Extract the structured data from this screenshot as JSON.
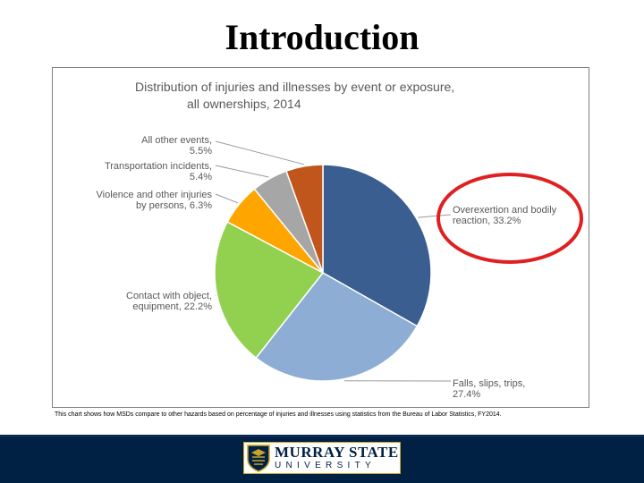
{
  "slide": {
    "title": "Introduction",
    "caption": "This chart shows how MSDs compare to other hazards based on percentage of injuries and illnesses using statistics from the Bureau of Labor Statistics, FY2014."
  },
  "chart_data": {
    "type": "pie",
    "title_lines": [
      "Distribution of injuries and illnesses by event or exposure,",
      "all ownerships, 2014"
    ],
    "slices": [
      {
        "label_lines": [
          "Overexertion and bodily",
          "reaction, 33.2%"
        ],
        "value": 33.2,
        "color": "#3a5e8f"
      },
      {
        "label_lines": [
          "Falls, slips, trips,",
          "27.4%"
        ],
        "value": 27.4,
        "color": "#8eadd4"
      },
      {
        "label_lines": [
          "Contact with object,",
          "equipment, 22.2%"
        ],
        "value": 22.2,
        "color": "#92d050"
      },
      {
        "label_lines": [
          "Violence and other injuries",
          "by persons, 6.3%"
        ],
        "value": 6.3,
        "color": "#ffa500"
      },
      {
        "label_lines": [
          "Transportation incidents,",
          "5.4%"
        ],
        "value": 5.4,
        "color": "#a6a6a6"
      },
      {
        "label_lines": [
          "All other events,",
          "5.5%"
        ],
        "value": 5.5,
        "color": "#c0561b"
      }
    ],
    "highlight": {
      "slice_index": 0,
      "color": "#e02020"
    }
  },
  "footer": {
    "logo_line1": "MURRAY STATE",
    "logo_line2": "UNIVERSITY",
    "bar_color": "#002144",
    "accent_color": "#c9a227"
  }
}
